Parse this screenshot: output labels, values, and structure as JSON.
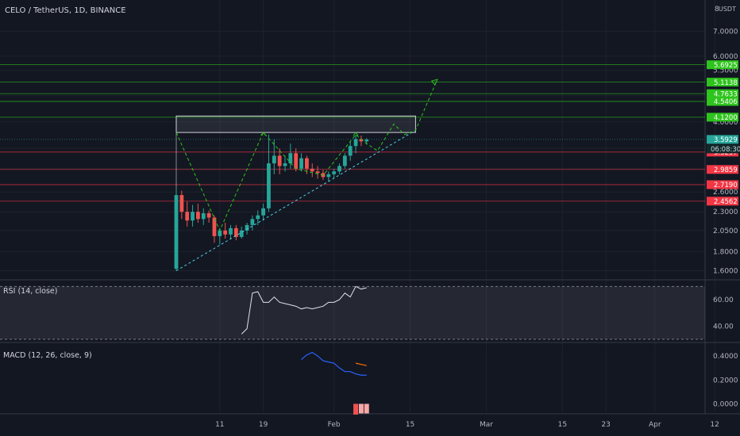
{
  "header": {
    "symbol_title": "CELO / TetherUS, 1D, BINANCE",
    "currency_label": "USDT"
  },
  "colors": {
    "background": "#131722",
    "grid": "#1e222d",
    "text": "#b2b5be",
    "up": "#26a69a",
    "down": "#ef5350",
    "green_level": "#2ec41d",
    "red_level": "#f23645",
    "current_price": "#26a69a",
    "rsi_line": "#e0e3eb",
    "macd_line": "#2962ff",
    "signal_line": "#ff6d00",
    "projection": "#2ec41d",
    "trendline": "#4dd0e1"
  },
  "chart_data": [
    {
      "type": "candlestick",
      "title": "CELO / TetherUS, 1D, BINANCE",
      "y_scale": "log",
      "ylim": [
        1.55,
        8.4
      ],
      "yticks": [
        1.6,
        1.8,
        2.05,
        2.3,
        2.6,
        3.0,
        3.4,
        4.0,
        4.7,
        5.5,
        6.0,
        7.0
      ],
      "ytick_labels": [
        "1.6000",
        "1.8000",
        "2.0500",
        "2.3000",
        "2.6000",
        "3.0000",
        "3.4000",
        "4.0000",
        "4.7000",
        "5.5000",
        "6.0000",
        "7.0000"
      ],
      "top_tick_label": "8",
      "xticks": [
        {
          "label": "11",
          "day": 11
        },
        {
          "label": "19",
          "day": 19
        },
        {
          "label": "Feb",
          "day": 32
        },
        {
          "label": "15",
          "day": 46
        },
        {
          "label": "Mar",
          "day": 60
        },
        {
          "label": "15",
          "day": 74
        },
        {
          "label": "23",
          "day": 82
        },
        {
          "label": "Apr",
          "day": 91
        },
        {
          "label": "12",
          "day": 102
        }
      ],
      "candles": [
        {
          "d": 3,
          "o": 1.62,
          "h": 2.65,
          "l": 1.6,
          "c": 2.55
        },
        {
          "d": 4,
          "o": 2.55,
          "h": 2.62,
          "l": 2.2,
          "c": 2.3
        },
        {
          "d": 5,
          "o": 2.3,
          "h": 2.45,
          "l": 2.1,
          "c": 2.18
        },
        {
          "d": 6,
          "o": 2.18,
          "h": 2.4,
          "l": 2.1,
          "c": 2.3
        },
        {
          "d": 7,
          "o": 2.3,
          "h": 2.42,
          "l": 2.15,
          "c": 2.2
        },
        {
          "d": 8,
          "o": 2.2,
          "h": 2.35,
          "l": 2.12,
          "c": 2.28
        },
        {
          "d": 9,
          "o": 2.28,
          "h": 2.32,
          "l": 2.15,
          "c": 2.22
        },
        {
          "d": 10,
          "o": 2.22,
          "h": 2.25,
          "l": 1.9,
          "c": 1.98
        },
        {
          "d": 11,
          "o": 1.98,
          "h": 2.08,
          "l": 1.88,
          "c": 2.05
        },
        {
          "d": 12,
          "o": 2.05,
          "h": 2.15,
          "l": 1.95,
          "c": 2.0
        },
        {
          "d": 13,
          "o": 2.0,
          "h": 2.12,
          "l": 1.94,
          "c": 2.08
        },
        {
          "d": 14,
          "o": 2.08,
          "h": 2.12,
          "l": 1.93,
          "c": 1.97
        },
        {
          "d": 15,
          "o": 1.97,
          "h": 2.1,
          "l": 1.95,
          "c": 2.05
        },
        {
          "d": 16,
          "o": 2.05,
          "h": 2.15,
          "l": 2.0,
          "c": 2.12
        },
        {
          "d": 17,
          "o": 2.12,
          "h": 2.25,
          "l": 2.05,
          "c": 2.2
        },
        {
          "d": 18,
          "o": 2.2,
          "h": 2.32,
          "l": 2.12,
          "c": 2.25
        },
        {
          "d": 19,
          "o": 2.25,
          "h": 2.42,
          "l": 2.18,
          "c": 2.35
        },
        {
          "d": 20,
          "o": 2.35,
          "h": 3.7,
          "l": 2.3,
          "c": 3.1
        },
        {
          "d": 21,
          "o": 3.1,
          "h": 3.6,
          "l": 2.9,
          "c": 3.25
        },
        {
          "d": 22,
          "o": 3.25,
          "h": 3.4,
          "l": 2.9,
          "c": 3.05
        },
        {
          "d": 23,
          "o": 3.05,
          "h": 3.25,
          "l": 2.95,
          "c": 3.1
        },
        {
          "d": 24,
          "o": 3.1,
          "h": 3.5,
          "l": 3.0,
          "c": 3.3
        },
        {
          "d": 25,
          "o": 3.3,
          "h": 3.4,
          "l": 2.95,
          "c": 3.0
        },
        {
          "d": 26,
          "o": 3.0,
          "h": 3.3,
          "l": 2.95,
          "c": 3.2
        },
        {
          "d": 27,
          "o": 3.2,
          "h": 3.25,
          "l": 2.9,
          "c": 3.0
        },
        {
          "d": 28,
          "o": 3.0,
          "h": 3.1,
          "l": 2.85,
          "c": 2.95
        },
        {
          "d": 29,
          "o": 2.95,
          "h": 3.05,
          "l": 2.82,
          "c": 2.92
        },
        {
          "d": 30,
          "o": 2.92,
          "h": 2.98,
          "l": 2.8,
          "c": 2.85
        },
        {
          "d": 31,
          "o": 2.85,
          "h": 2.95,
          "l": 2.78,
          "c": 2.9
        },
        {
          "d": 32,
          "o": 2.9,
          "h": 3.0,
          "l": 2.82,
          "c": 2.95
        },
        {
          "d": 33,
          "o": 2.95,
          "h": 3.1,
          "l": 2.9,
          "c": 3.05
        },
        {
          "d": 34,
          "o": 3.05,
          "h": 3.3,
          "l": 3.0,
          "c": 3.25
        },
        {
          "d": 35,
          "o": 3.25,
          "h": 3.55,
          "l": 3.15,
          "c": 3.45
        },
        {
          "d": 36,
          "o": 3.45,
          "h": 3.7,
          "l": 3.3,
          "c": 3.6
        },
        {
          "d": 37,
          "o": 3.6,
          "h": 3.68,
          "l": 3.45,
          "c": 3.55
        },
        {
          "d": 38,
          "o": 3.55,
          "h": 3.62,
          "l": 3.48,
          "c": 3.59
        }
      ],
      "levels": [
        {
          "price": 5.6925,
          "label": "5.6925",
          "kind": "green"
        },
        {
          "price": 5.1138,
          "label": "5.1138",
          "kind": "green"
        },
        {
          "price": 4.7633,
          "label": "4.7633",
          "kind": "green"
        },
        {
          "price": 4.5406,
          "label": "4.5406",
          "kind": "green"
        },
        {
          "price": 4.12,
          "label": "4.1200",
          "kind": "green"
        },
        {
          "price": 3.5929,
          "label": "3.5929",
          "kind": "current"
        },
        {
          "price": 3.3237,
          "label": "3.3237",
          "kind": "red"
        },
        {
          "price": 2.9859,
          "label": "2.9859",
          "kind": "red"
        },
        {
          "price": 2.719,
          "label": "2.7190",
          "kind": "red"
        },
        {
          "price": 2.4562,
          "label": "2.4562",
          "kind": "red"
        }
      ],
      "countdown_label": "06:08:30",
      "zone_box": {
        "d_start": 3,
        "d_end": 47,
        "p_low": 3.75,
        "p_high": 4.15
      },
      "trendline": {
        "d1": 3,
        "p1": 1.6,
        "d2": 47,
        "p2": 3.8
      },
      "projection_path": [
        {
          "d": 3,
          "p": 3.75
        },
        {
          "d": 11,
          "p": 2.05
        },
        {
          "d": 19,
          "p": 3.75
        },
        {
          "d": 25,
          "p": 3.0
        },
        {
          "d": 30,
          "p": 2.88
        },
        {
          "d": 36,
          "p": 3.7
        },
        {
          "d": 38,
          "p": 3.5
        },
        {
          "d": 40,
          "p": 3.35
        },
        {
          "d": 43,
          "p": 3.95
        },
        {
          "d": 45,
          "p": 3.7
        },
        {
          "d": 47,
          "p": 3.8
        },
        {
          "d": 51,
          "p": 5.2
        }
      ]
    },
    {
      "type": "line",
      "title": "RSI (14, close)",
      "ylim": [
        30,
        72
      ],
      "yticks": [
        40,
        60
      ],
      "ytick_labels": [
        "40.00",
        "60.00"
      ],
      "band": [
        30,
        70
      ],
      "series": [
        {
          "x": [
            15,
            16,
            17,
            18,
            19,
            20,
            21,
            22,
            23,
            24,
            25,
            26,
            27,
            28,
            29,
            30,
            31,
            32,
            33,
            34,
            35,
            36,
            37,
            38
          ],
          "values": [
            34,
            38,
            65,
            66,
            58,
            58,
            62,
            58,
            57,
            56,
            55,
            53,
            54,
            53,
            54,
            55,
            58,
            58,
            60,
            65,
            62,
            70,
            68,
            69
          ]
        }
      ]
    },
    {
      "type": "line",
      "title": "MACD (12, 26, close, 9)",
      "ylim": [
        -0.07,
        0.5
      ],
      "yticks": [
        0.0,
        0.2,
        0.4
      ],
      "ytick_labels": [
        "0.0000",
        "0.2000",
        "0.4000"
      ],
      "series": [
        {
          "x": [
            26,
            27,
            28,
            29,
            30,
            31,
            32,
            33,
            34,
            35,
            36,
            37,
            38
          ],
          "values": [
            0.37,
            0.41,
            0.43,
            0.4,
            0.36,
            0.35,
            0.34,
            0.3,
            0.27,
            0.27,
            0.25,
            0.24,
            0.24
          ],
          "color_key": "macd_line"
        },
        {
          "x": [
            36,
            37,
            38
          ],
          "values": [
            0.34,
            0.33,
            0.32
          ],
          "color_key": "signal_line"
        }
      ],
      "histogram": [
        {
          "d": 36,
          "v": -0.09
        },
        {
          "d": 37,
          "v": -0.08
        },
        {
          "d": 38,
          "v": -0.08
        }
      ]
    }
  ]
}
